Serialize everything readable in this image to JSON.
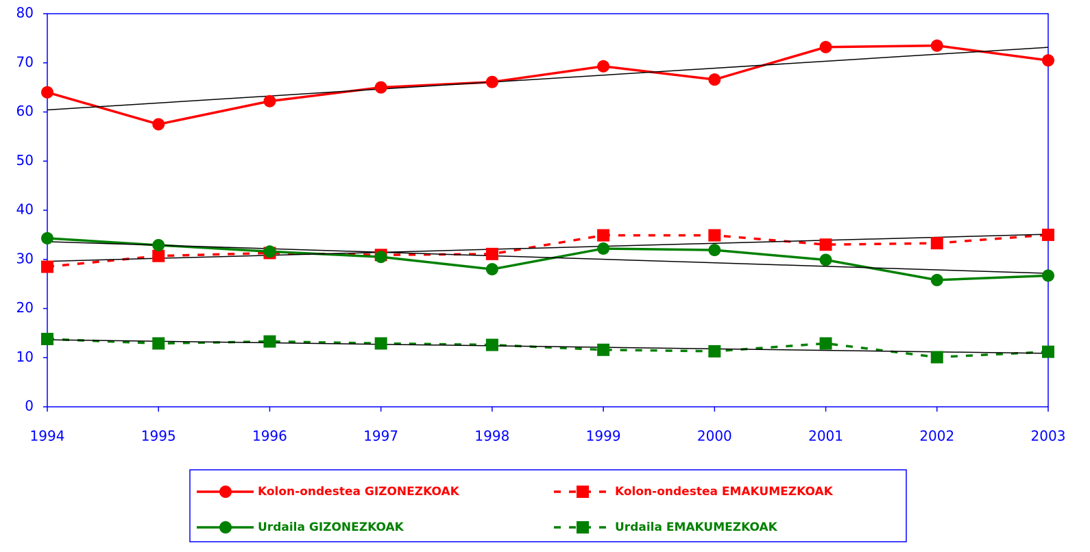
{
  "chart_data": {
    "type": "line",
    "categories": [
      "1994",
      "1995",
      "1996",
      "1997",
      "1998",
      "1999",
      "2000",
      "2001",
      "2002",
      "2003"
    ],
    "series": [
      {
        "name": "Kolon-ondestea GIZONEZKOAK",
        "color": "#ff0000",
        "marker": "circle",
        "dashed": false,
        "values": [
          64,
          57.5,
          62.2,
          65,
          66.1,
          69.3,
          66.6,
          73.2,
          73.5,
          70.5
        ]
      },
      {
        "name": "Kolon-ondestea EMAKUMEZKOAK",
        "color": "#ff0000",
        "marker": "square",
        "dashed": true,
        "values": [
          28.5,
          30.7,
          31.3,
          30.9,
          31.1,
          34.9,
          34.9,
          33,
          33.3,
          35
        ]
      },
      {
        "name": "Urdaila GIZONEZKOAK",
        "color": "#008000",
        "marker": "circle",
        "dashed": false,
        "values": [
          34.3,
          32.9,
          31.6,
          30.5,
          28,
          32.2,
          31.9,
          29.9,
          25.8,
          26.7
        ]
      },
      {
        "name": "Urdaila EMAKUMEZKOAK",
        "color": "#008000",
        "marker": "square",
        "dashed": true,
        "values": [
          13.8,
          12.9,
          13.3,
          12.9,
          12.6,
          11.6,
          11.3,
          12.9,
          10.1,
          11.2
        ]
      }
    ],
    "ylim": [
      0,
      80
    ],
    "yticks": [
      0,
      10,
      20,
      30,
      40,
      50,
      60,
      70,
      80
    ],
    "trendline": true,
    "legend": "bottom",
    "axis_color": "#0000ff"
  }
}
